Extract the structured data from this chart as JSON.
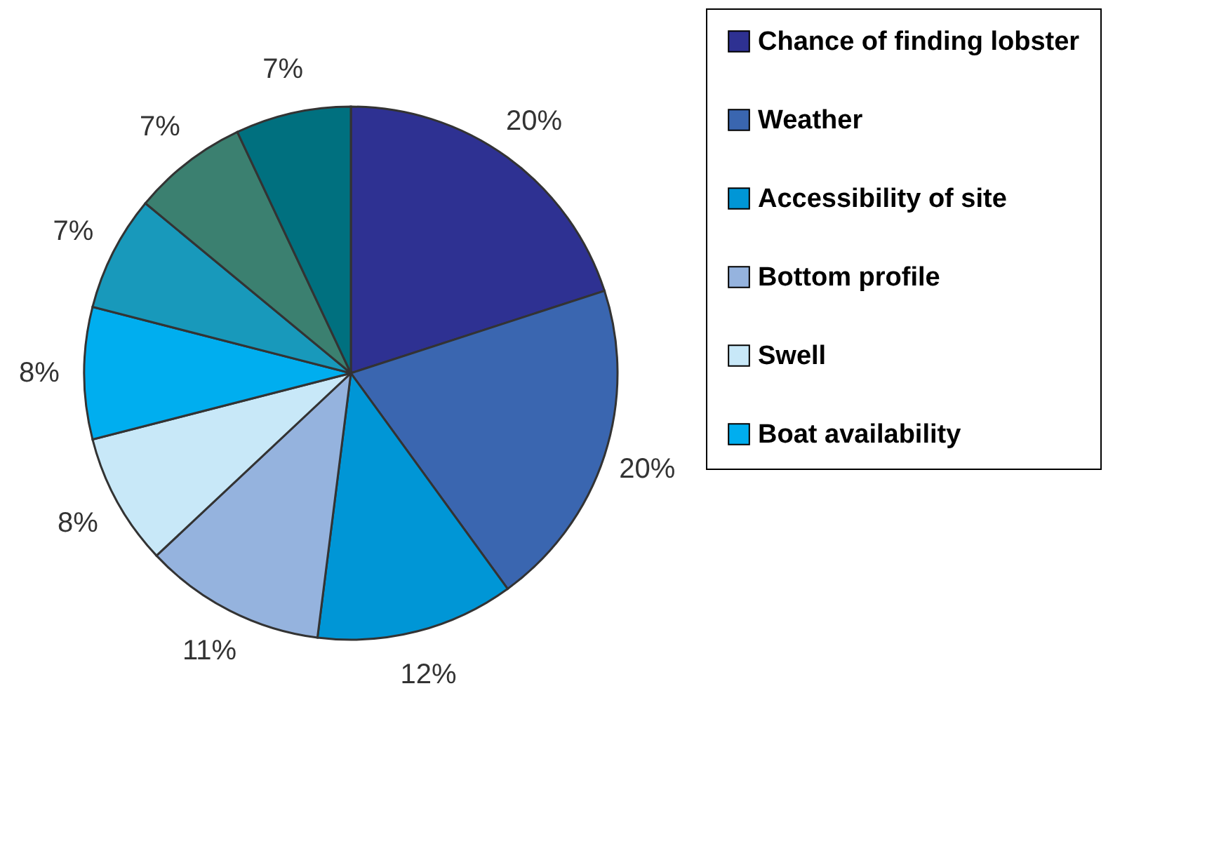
{
  "chart_data": {
    "type": "pie",
    "categories": [
      "Chance of finding lobster",
      "Weather",
      "Accessibility of site",
      "Bottom profile",
      "Swell",
      "Boat availability",
      null,
      null,
      null
    ],
    "values": [
      20,
      20,
      12,
      11,
      8,
      8,
      7,
      7,
      7
    ],
    "colors": [
      "#2e3192",
      "#3a66b0",
      "#0096d6",
      "#95b3de",
      "#c8e8f8",
      "#00aeef",
      "#1899bb",
      "#3b8070",
      "#00707f"
    ],
    "value_labels": [
      "20%",
      "20%",
      "12%",
      "11%",
      "8%",
      "8%",
      "7%",
      "7%",
      "7%"
    ],
    "legend": "right"
  }
}
